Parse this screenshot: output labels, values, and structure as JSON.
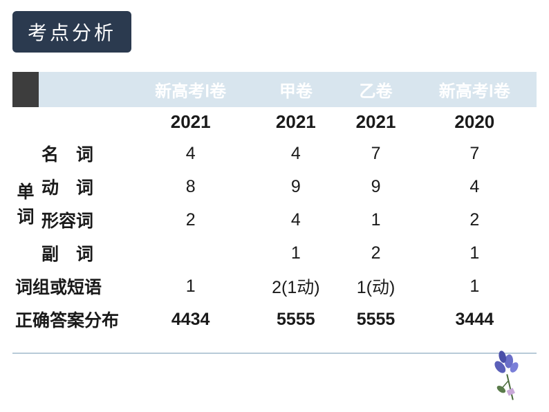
{
  "title": "考点分析",
  "table": {
    "header_cells": [
      "新高考Ⅰ卷",
      "甲卷",
      "乙卷",
      "新高考Ⅰ卷"
    ],
    "years": [
      "2021",
      "2021",
      "2021",
      "2020"
    ],
    "category_vertical": "单词",
    "rows": [
      {
        "label": "名　词",
        "values": [
          "4",
          "4",
          "7",
          "7"
        ]
      },
      {
        "label": "动　词",
        "values": [
          "8",
          "9",
          "9",
          "4"
        ]
      },
      {
        "label": "形容词",
        "values": [
          "2",
          "4",
          "1",
          "2"
        ]
      },
      {
        "label": "副　词",
        "values": [
          "",
          "1",
          "2",
          "1"
        ]
      }
    ],
    "phrase_row": {
      "label": "词组或短语",
      "values": [
        "1",
        "2(1动)",
        "1(动)",
        "1"
      ]
    },
    "answer_row": {
      "label": "正确答案分布",
      "values": [
        "4434",
        "5555",
        "5555",
        "3444"
      ]
    }
  },
  "colors": {
    "title_bg": "#2b3a4f",
    "header_bg": "#d8e5ee",
    "corner_bg": "#3d3d3d",
    "rule": "#b7cad8"
  },
  "icon": "flower-icon"
}
